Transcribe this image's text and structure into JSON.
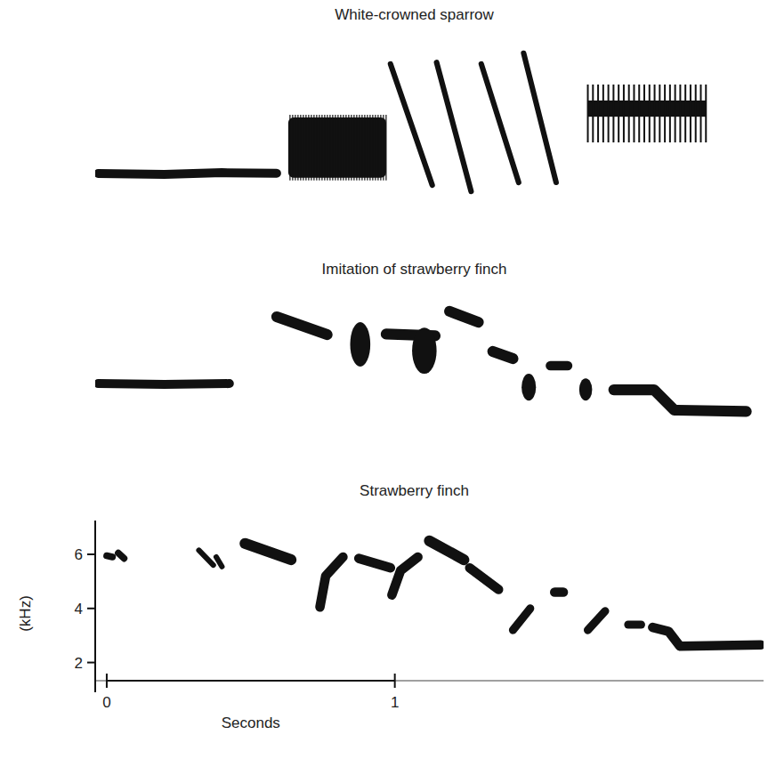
{
  "chart_data": [
    {
      "type": "spectrogram",
      "title": "White-crowned sparrow",
      "xlim": [
        -0.04,
        2.28
      ],
      "ylim": [
        0.9,
        7.25
      ],
      "tick_labels": false,
      "notes": [
        {
          "kind": "tone",
          "points": [
            [
              -0.03,
              2.15
            ],
            [
              0.2,
              2.12
            ],
            [
              0.4,
              2.18
            ],
            [
              0.59,
              2.16
            ]
          ],
          "bw": 0.33
        },
        {
          "kind": "noise",
          "t": [
            0.63,
            0.97
          ],
          "f": [
            1.99,
            4.22
          ]
        },
        {
          "kind": "tone",
          "points": [
            [
              0.985,
              6.2
            ],
            [
              1.13,
              1.72
            ]
          ],
          "bw": 0.2
        },
        {
          "kind": "tone",
          "points": [
            [
              1.145,
              6.26
            ],
            [
              1.265,
              1.49
            ]
          ],
          "bw": 0.2
        },
        {
          "kind": "tone",
          "points": [
            [
              1.3,
              6.2
            ],
            [
              1.43,
              1.82
            ]
          ],
          "bw": 0.2
        },
        {
          "kind": "tone",
          "points": [
            [
              1.447,
              6.6
            ],
            [
              1.56,
              1.82
            ]
          ],
          "bw": 0.2
        },
        {
          "kind": "buzz",
          "t": [
            1.67,
            2.08
          ],
          "f": [
            3.3,
            5.44
          ],
          "band": [
            4.25,
            4.85
          ],
          "pulses": 24
        }
      ]
    },
    {
      "type": "spectrogram",
      "title": "Imitation of strawberry finch",
      "xlim": [
        -0.04,
        2.28
      ],
      "ylim": [
        0.9,
        7.25
      ],
      "tick_labels": false,
      "notes": [
        {
          "kind": "tone",
          "points": [
            [
              -0.03,
              3.53
            ],
            [
              0.2,
              3.5
            ],
            [
              0.426,
              3.53
            ]
          ],
          "bw": 0.33
        },
        {
          "kind": "tone",
          "points": [
            [
              0.59,
              6.0
            ],
            [
              0.765,
              5.34
            ]
          ],
          "bw": 0.4
        },
        {
          "kind": "blob",
          "t": [
            0.845,
            0.915
          ],
          "f": [
            4.16,
            5.8
          ]
        },
        {
          "kind": "tone",
          "points": [
            [
              0.97,
              5.36
            ],
            [
              1.14,
              5.3
            ]
          ],
          "bw": 0.4
        },
        {
          "kind": "blob",
          "t": [
            1.06,
            1.145
          ],
          "f": [
            3.89,
            5.6
          ]
        },
        {
          "kind": "tone",
          "points": [
            [
              1.19,
              6.2
            ],
            [
              1.29,
              5.8
            ]
          ],
          "bw": 0.4
        },
        {
          "kind": "tone",
          "points": [
            [
              1.34,
              4.72
            ],
            [
              1.41,
              4.45
            ]
          ],
          "bw": 0.4
        },
        {
          "kind": "blob",
          "t": [
            1.44,
            1.49
          ],
          "f": [
            2.9,
            3.89
          ]
        },
        {
          "kind": "tone",
          "points": [
            [
              1.54,
              4.19
            ],
            [
              1.6,
              4.19
            ]
          ],
          "bw": 0.35
        },
        {
          "kind": "blob",
          "t": [
            1.64,
            1.685
          ],
          "f": [
            2.9,
            3.72
          ]
        },
        {
          "kind": "tone",
          "points": [
            [
              1.76,
              3.3
            ],
            [
              1.9,
              3.3
            ],
            [
              1.97,
              2.55
            ],
            [
              2.22,
              2.5
            ]
          ],
          "bw": 0.4
        }
      ]
    },
    {
      "type": "spectrogram",
      "title": "Strawberry finch",
      "xlim": [
        -0.04,
        2.28
      ],
      "ylim": [
        0.9,
        7.25
      ],
      "xticks": [
        0,
        1
      ],
      "yticks": [
        2,
        4,
        6
      ],
      "xlabel": "Seconds",
      "ylabel": "(kHz)",
      "notes": [
        {
          "kind": "tone",
          "points": [
            [
              0.0,
              5.95
            ],
            [
              0.02,
              5.9
            ]
          ],
          "bw": 0.25
        },
        {
          "kind": "tone",
          "points": [
            [
              0.04,
              6.05
            ],
            [
              0.06,
              5.85
            ]
          ],
          "bw": 0.25
        },
        {
          "kind": "tone",
          "points": [
            [
              0.32,
              6.15
            ],
            [
              0.37,
              5.6
            ]
          ],
          "bw": 0.2
        },
        {
          "kind": "tone",
          "points": [
            [
              0.38,
              5.9
            ],
            [
              0.4,
              5.55
            ]
          ],
          "bw": 0.2
        },
        {
          "kind": "tone",
          "points": [
            [
              0.48,
              6.4
            ],
            [
              0.64,
              5.8
            ]
          ],
          "bw": 0.4
        },
        {
          "kind": "tone",
          "points": [
            [
              0.74,
              4.05
            ],
            [
              0.76,
              5.2
            ],
            [
              0.82,
              5.9
            ]
          ],
          "bw": 0.35
        },
        {
          "kind": "tone",
          "points": [
            [
              0.875,
              5.85
            ],
            [
              0.985,
              5.5
            ]
          ],
          "bw": 0.35
        },
        {
          "kind": "tone",
          "points": [
            [
              0.99,
              4.5
            ],
            [
              1.02,
              5.4
            ],
            [
              1.08,
              5.9
            ]
          ],
          "bw": 0.35
        },
        {
          "kind": "tone",
          "points": [
            [
              1.12,
              6.5
            ],
            [
              1.24,
              5.8
            ]
          ],
          "bw": 0.4
        },
        {
          "kind": "tone",
          "points": [
            [
              1.26,
              5.5
            ],
            [
              1.36,
              4.7
            ]
          ],
          "bw": 0.35
        },
        {
          "kind": "tone",
          "points": [
            [
              1.41,
              3.2
            ],
            [
              1.47,
              4.0
            ]
          ],
          "bw": 0.3
        },
        {
          "kind": "tone",
          "points": [
            [
              1.555,
              4.6
            ],
            [
              1.585,
              4.6
            ]
          ],
          "bw": 0.35
        },
        {
          "kind": "tone",
          "points": [
            [
              1.67,
              3.2
            ],
            [
              1.73,
              3.9
            ]
          ],
          "bw": 0.3
        },
        {
          "kind": "tone",
          "points": [
            [
              1.81,
              3.4
            ],
            [
              1.855,
              3.4
            ]
          ],
          "bw": 0.3
        },
        {
          "kind": "tone",
          "points": [
            [
              1.895,
              3.3
            ],
            [
              1.95,
              3.15
            ],
            [
              1.99,
              2.6
            ],
            [
              2.27,
              2.65
            ]
          ],
          "bw": 0.35
        }
      ]
    }
  ]
}
